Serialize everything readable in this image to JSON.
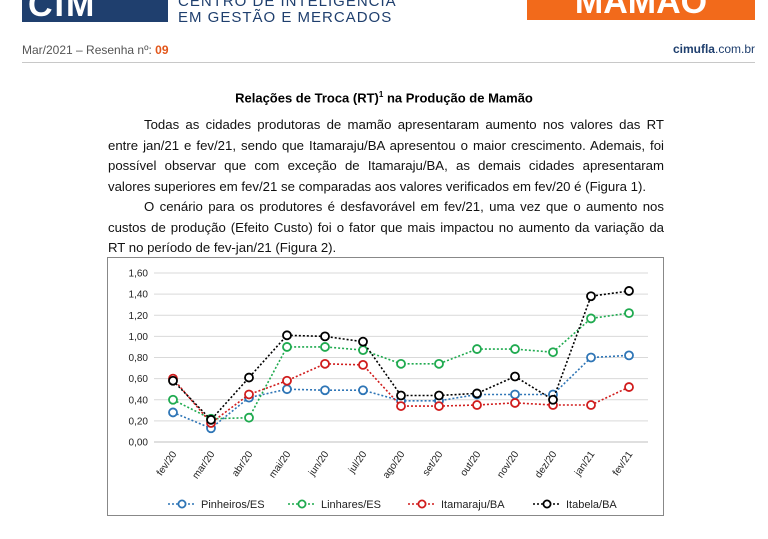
{
  "header": {
    "logo_text": "CIM",
    "org_line1": "CENTRO DE INTELIGÊNCIA",
    "org_line2": "EM GESTÃO E MERCADOS",
    "product": "MAMÃO"
  },
  "meta": {
    "issue_prefix": "Mar/2021 – Resenha nº:",
    "issue_number": "09",
    "site_bold": "cimufla",
    "site_rest": ".com.br"
  },
  "article": {
    "title": "Relações de Troca (RT)",
    "title_sup": "1",
    "title_suffix": " na Produção de Mamão",
    "paragraph1": "Todas as cidades produtoras de mamão apresentaram aumento nos valores das RT entre jan/21 e fev/21, sendo que Itamaraju/BA apresentou o maior crescimento. Ademais, foi possível observar que com exceção de Itamaraju/BA, as demais cidades apresentaram valores superiores em fev/21 se comparadas aos valores verificados em fev/20 é (Figura 1).",
    "paragraph2": "O cenário para os produtores é desfavorável em fev/21, uma vez que o aumento nos custos de produção (Efeito Custo) foi o fator que mais impactou no aumento da variação da RT no período de fev-jan/21 (Figura 2)."
  },
  "chart_data": {
    "type": "line",
    "title": "",
    "xlabel": "",
    "ylabel": "",
    "ylim": [
      0,
      1.6
    ],
    "y_ticks": [
      "0,00",
      "0,20",
      "0,40",
      "0,60",
      "0,80",
      "1,00",
      "1,20",
      "1,40",
      "1,60"
    ],
    "grid": true,
    "legend_position": "bottom",
    "categories": [
      "fev/20",
      "mar/20",
      "abr/20",
      "mai/20",
      "jun/20",
      "jul/20",
      "ago/20",
      "set/20",
      "out/20",
      "nov/20",
      "dez/20",
      "jan/21",
      "fev/21"
    ],
    "series": [
      {
        "name": "Pinheiros/ES",
        "color": "#2e75b6",
        "values": [
          0.28,
          0.13,
          0.42,
          0.5,
          0.49,
          0.49,
          0.39,
          0.39,
          0.45,
          0.45,
          0.45,
          0.8,
          0.82
        ]
      },
      {
        "name": "Linhares/ES",
        "color": "#1faa4f",
        "values": [
          0.4,
          0.22,
          0.23,
          0.9,
          0.9,
          0.87,
          0.74,
          0.74,
          0.88,
          0.88,
          0.85,
          1.17,
          1.22
        ]
      },
      {
        "name": "Itamaraju/BA",
        "color": "#d01c1c",
        "values": [
          0.6,
          0.18,
          0.45,
          0.58,
          0.74,
          0.73,
          0.34,
          0.34,
          0.35,
          0.37,
          0.35,
          0.35,
          0.52
        ]
      },
      {
        "name": "Itabela/BA",
        "color": "#000000",
        "values": [
          0.58,
          0.21,
          0.61,
          1.01,
          1.0,
          0.95,
          0.44,
          0.44,
          0.46,
          0.62,
          0.4,
          1.38,
          1.43
        ]
      }
    ]
  }
}
